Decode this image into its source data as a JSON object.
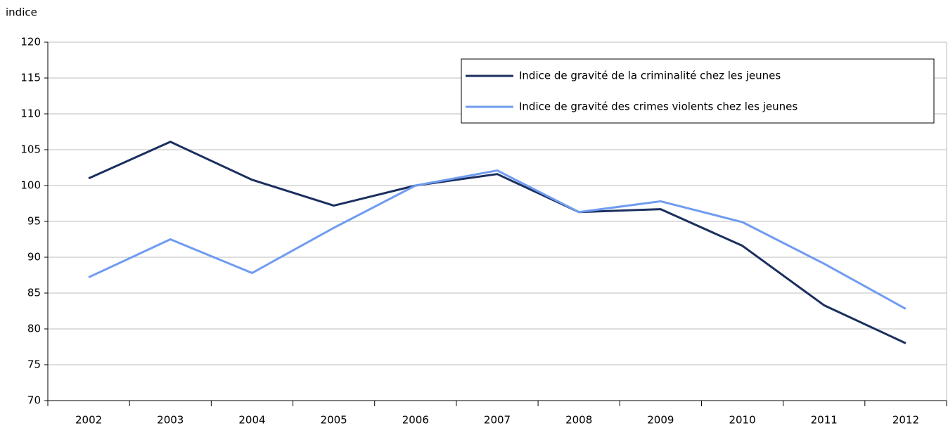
{
  "chart_data": {
    "type": "line",
    "y_label": "indice",
    "categories": [
      "2002",
      "2003",
      "2004",
      "2005",
      "2006",
      "2007",
      "2008",
      "2009",
      "2010",
      "2011",
      "2012"
    ],
    "series": [
      {
        "name": "Indice de gravité de la criminalité chez les jeunes",
        "color": "#1b2f5f",
        "values": [
          101,
          106.1,
          100.8,
          97.2,
          100,
          101.6,
          96.3,
          96.7,
          91.6,
          83.3,
          78
        ]
      },
      {
        "name": "Indice de gravité des crimes violents chez les jeunes",
        "color": "#6f9cf0",
        "values": [
          87.2,
          92.5,
          87.8,
          94.1,
          100,
          102.1,
          96.3,
          97.8,
          94.9,
          89.1,
          82.8
        ]
      }
    ],
    "ylim": [
      70,
      120
    ],
    "yticks": [
      70,
      75,
      80,
      85,
      90,
      95,
      100,
      105,
      110,
      115,
      120
    ],
    "grid": true,
    "legend": "upper right"
  }
}
